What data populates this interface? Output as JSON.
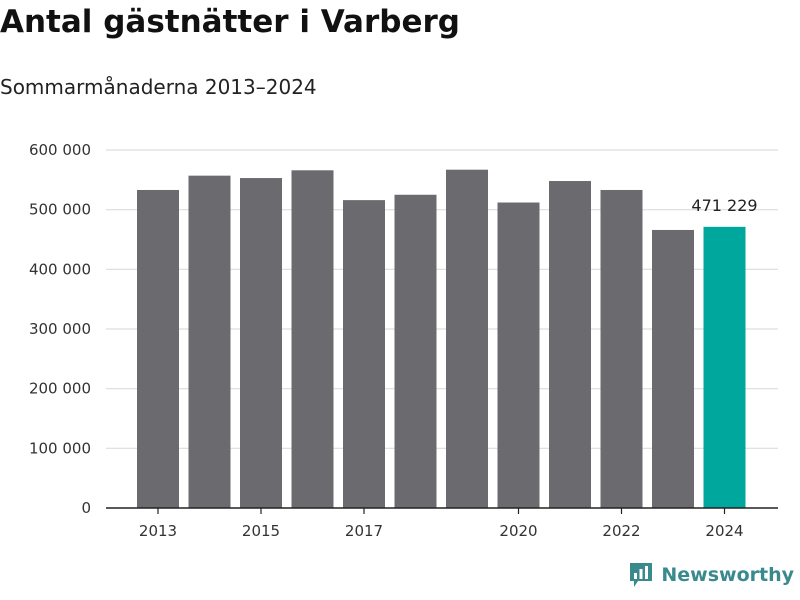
{
  "header": {
    "title": "Antal gästnätter i Varberg",
    "subtitle": "Sommarmånaderna 2013–2024"
  },
  "brand": {
    "name": "Newsworthy",
    "logo_icon": "newsworthy-logo-icon",
    "color": "#3a8a8d"
  },
  "colors": {
    "bar": "#6b6a6f",
    "highlight": "#00a79d",
    "grid": "#dddddd",
    "axis": "#222222"
  },
  "chart_data": {
    "type": "bar",
    "title": "Antal gästnätter i Varberg",
    "subtitle": "Sommarmånaderna 2013–2024",
    "categories": [
      "2013",
      "2014",
      "2015",
      "2016",
      "2017",
      "2018",
      "2019",
      "2020",
      "2021",
      "2022",
      "2023",
      "2024"
    ],
    "x_tick_labels": [
      "2013",
      "",
      "2015",
      "",
      "2017",
      "",
      "",
      "2020",
      "",
      "2022",
      "",
      "2024"
    ],
    "values": [
      533000,
      557000,
      553000,
      566000,
      516000,
      525000,
      567000,
      512000,
      548000,
      533000,
      466000,
      471229
    ],
    "highlight_index": 11,
    "data_labels": [
      {
        "index": 11,
        "text": "471 229"
      }
    ],
    "y_ticks": [
      0,
      100000,
      200000,
      300000,
      400000,
      500000,
      600000
    ],
    "y_tick_labels": [
      "0",
      "100 000",
      "200 000",
      "300 000",
      "400 000",
      "500 000",
      "600 000"
    ],
    "ylim": [
      0,
      600000
    ],
    "xlabel": "",
    "ylabel": "",
    "grid": true,
    "legend": "none"
  }
}
